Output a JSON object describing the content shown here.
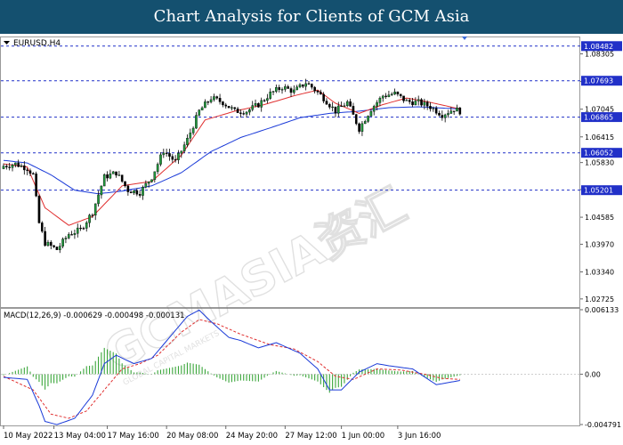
{
  "header": {
    "title": "Chart Analysis for Clients of GCM Asia"
  },
  "colors": {
    "title_bg": "#14506f",
    "bull": "#1f9a3c",
    "bear": "#000000",
    "ma_fast": "#e03030",
    "ma_slow": "#1a3ad8",
    "level_line": "#2130c8",
    "macd_hist": "#3aa63a",
    "macd_signal": "#e03030",
    "macd_main": "#1a3ad8"
  },
  "watermark": {
    "text": "GCMASIA资汇",
    "subtext": "GLOBAL CAPITAL MARKETS"
  },
  "chart_data": [
    {
      "type": "candlestick",
      "symbol_label": "EURUSD,H4",
      "ylim": [
        1.0256,
        1.0866
      ],
      "y_ticks": [
        "1.08305",
        "1.07675",
        "1.07045",
        "1.06415",
        "1.05830",
        "1.05215",
        "1.04585",
        "1.03970",
        "1.03340",
        "1.02725"
      ],
      "levels": [
        {
          "value": 1.08482,
          "label": "1.08482"
        },
        {
          "value": 1.07693,
          "label": "1.07693"
        },
        {
          "value": 1.06865,
          "label": "1.06865"
        },
        {
          "value": 1.06052,
          "label": "1.06052"
        },
        {
          "value": 1.05201,
          "label": "1.05201"
        }
      ],
      "price_anchors": [
        [
          0,
          1.0575
        ],
        [
          4,
          1.058
        ],
        [
          8,
          1.057
        ],
        [
          10,
          1.0555
        ],
        [
          12,
          1.0445
        ],
        [
          14,
          1.04
        ],
        [
          18,
          1.0385
        ],
        [
          22,
          1.042
        ],
        [
          26,
          1.043
        ],
        [
          30,
          1.047
        ],
        [
          34,
          1.055
        ],
        [
          38,
          1.056
        ],
        [
          42,
          1.052
        ],
        [
          46,
          1.0515
        ],
        [
          50,
          1.055
        ],
        [
          54,
          1.061
        ],
        [
          58,
          1.0585
        ],
        [
          62,
          1.0635
        ],
        [
          66,
          1.07
        ],
        [
          70,
          1.073
        ],
        [
          74,
          1.072
        ],
        [
          78,
          1.07
        ],
        [
          82,
          1.07
        ],
        [
          86,
          1.0715
        ],
        [
          90,
          1.074
        ],
        [
          94,
          1.0755
        ],
        [
          98,
          1.0745
        ],
        [
          102,
          1.0765
        ],
        [
          104,
          1.0755
        ],
        [
          108,
          1.073
        ],
        [
          112,
          1.07
        ],
        [
          116,
          1.072
        ],
        [
          120,
          1.066
        ],
        [
          124,
          1.0705
        ],
        [
          128,
          1.0735
        ],
        [
          132,
          1.074
        ],
        [
          136,
          1.0722
        ],
        [
          140,
          1.072
        ],
        [
          144,
          1.071
        ],
        [
          148,
          1.0692
        ],
        [
          152,
          1.0705
        ],
        [
          154,
          1.07
        ]
      ],
      "ma_fast_anchors": [
        [
          0,
          1.058
        ],
        [
          8,
          1.0573
        ],
        [
          14,
          1.048
        ],
        [
          22,
          1.044
        ],
        [
          30,
          1.046
        ],
        [
          40,
          1.053
        ],
        [
          50,
          1.054
        ],
        [
          60,
          1.06
        ],
        [
          68,
          1.068
        ],
        [
          78,
          1.07
        ],
        [
          88,
          1.0715
        ],
        [
          98,
          1.0735
        ],
        [
          106,
          1.0748
        ],
        [
          112,
          1.0718
        ],
        [
          120,
          1.0695
        ],
        [
          128,
          1.0715
        ],
        [
          136,
          1.073
        ],
        [
          144,
          1.072
        ],
        [
          154,
          1.0705
        ]
      ],
      "ma_slow_anchors": [
        [
          0,
          1.0588
        ],
        [
          8,
          1.0582
        ],
        [
          16,
          1.0555
        ],
        [
          24,
          1.052
        ],
        [
          32,
          1.0512
        ],
        [
          40,
          1.0518
        ],
        [
          50,
          1.053
        ],
        [
          60,
          1.056
        ],
        [
          70,
          1.0608
        ],
        [
          80,
          1.064
        ],
        [
          90,
          1.0662
        ],
        [
          100,
          1.0685
        ],
        [
          110,
          1.0695
        ],
        [
          120,
          1.07
        ],
        [
          130,
          1.0708
        ],
        [
          140,
          1.071
        ],
        [
          154,
          1.0705
        ]
      ],
      "x_ticks": [
        {
          "bar": 0,
          "label": "10 May 2022"
        },
        {
          "bar": 17,
          "label": "13 May 04:00"
        },
        {
          "bar": 35,
          "label": "17 May 16:00"
        },
        {
          "bar": 55,
          "label": "20 May 08:00"
        },
        {
          "bar": 75,
          "label": "24 May 20:00"
        },
        {
          "bar": 95,
          "label": "27 May 12:00"
        },
        {
          "bar": 114,
          "label": "1 Jun 00:00"
        },
        {
          "bar": 133,
          "label": "3 Jun 16:00"
        }
      ],
      "bar_count": 155
    },
    {
      "type": "macd",
      "label": "MACD(12,26,9) -0.000629 -0.000498 -0.000131",
      "ylim": [
        -0.004791,
        0.006133
      ],
      "y_ticks": [
        "0.006133",
        "0.00",
        "-0.004791"
      ],
      "main_anchors": [
        [
          0,
          -0.0003
        ],
        [
          8,
          -0.0005
        ],
        [
          12,
          -0.003
        ],
        [
          14,
          -0.0045
        ],
        [
          18,
          -0.0048
        ],
        [
          24,
          -0.0042
        ],
        [
          30,
          -0.002
        ],
        [
          34,
          0.001
        ],
        [
          38,
          0.0018
        ],
        [
          44,
          0.001
        ],
        [
          50,
          0.0015
        ],
        [
          56,
          0.0035
        ],
        [
          62,
          0.0055
        ],
        [
          66,
          0.0061
        ],
        [
          70,
          0.005
        ],
        [
          76,
          0.0035
        ],
        [
          80,
          0.0032
        ],
        [
          86,
          0.0025
        ],
        [
          92,
          0.003
        ],
        [
          100,
          0.002
        ],
        [
          106,
          0.0005
        ],
        [
          110,
          -0.0015
        ],
        [
          114,
          -0.0015
        ],
        [
          120,
          0.0002
        ],
        [
          126,
          0.001
        ],
        [
          130,
          0.0008
        ],
        [
          138,
          0.0005
        ],
        [
          146,
          -0.001
        ],
        [
          150,
          -0.0008
        ],
        [
          154,
          -0.0006
        ]
      ],
      "signal_anchors": [
        [
          0,
          -0.0002
        ],
        [
          10,
          -0.0015
        ],
        [
          16,
          -0.0038
        ],
        [
          22,
          -0.0042
        ],
        [
          28,
          -0.0035
        ],
        [
          34,
          -0.0015
        ],
        [
          40,
          0.0005
        ],
        [
          46,
          0.001
        ],
        [
          52,
          0.0018
        ],
        [
          60,
          0.004
        ],
        [
          66,
          0.0052
        ],
        [
          72,
          0.0048
        ],
        [
          80,
          0.0038
        ],
        [
          90,
          0.0028
        ],
        [
          98,
          0.0024
        ],
        [
          106,
          0.0012
        ],
        [
          112,
          -0.0002
        ],
        [
          118,
          -0.0005
        ],
        [
          126,
          0.0005
        ],
        [
          134,
          0.0004
        ],
        [
          142,
          0.0
        ],
        [
          148,
          -0.0004
        ],
        [
          154,
          -0.0005
        ]
      ]
    }
  ]
}
